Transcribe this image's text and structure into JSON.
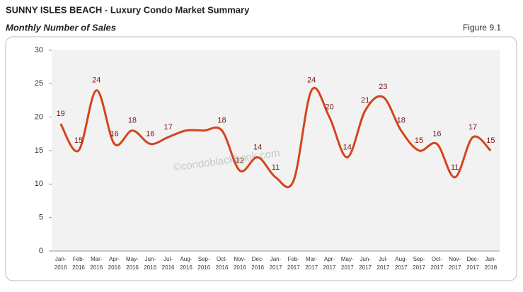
{
  "header": {
    "title": "SUNNY ISLES BEACH - Luxury Condo Market Summary",
    "subtitle": "Monthly Number of Sales",
    "figure": "Figure 9.1"
  },
  "watermark": "©condoblackbook.com",
  "chart_data": {
    "type": "line",
    "categories": [
      "Jan-2016",
      "Feb-2016",
      "Mar-2016",
      "Apr-2016",
      "May-2016",
      "Jun-2016",
      "Jul-2016",
      "Aug-2016",
      "Sep-2016",
      "Oct-2016",
      "Nov-2016",
      "Dec-2016",
      "Jan-2017",
      "Feb-2017",
      "Mar-2017",
      "Apr-2017",
      "May-2017",
      "Jun-2017",
      "Jul-2017",
      "Aug-2017",
      "Sep-2017",
      "Oct-2017",
      "Nov-2017",
      "Dec-2017",
      "Jan-2018"
    ],
    "values": [
      19,
      15,
      24,
      16,
      18,
      16,
      17,
      18,
      18,
      18,
      12,
      14,
      11,
      10.5,
      24,
      20,
      14,
      21,
      23,
      18,
      15,
      16,
      11,
      17,
      15
    ],
    "value_labels": [
      "19",
      "15",
      "24",
      "16",
      "18",
      "16",
      "17",
      null,
      null,
      "18",
      "12",
      "14",
      "11",
      null,
      "24",
      "20",
      "14",
      "21",
      "23",
      "18",
      "15",
      "16",
      "11",
      "17",
      "15"
    ],
    "color": "#d4441c",
    "ylim": [
      0,
      30
    ],
    "yticks": [
      0,
      5,
      10,
      15,
      20,
      25,
      30
    ],
    "grid": false
  }
}
